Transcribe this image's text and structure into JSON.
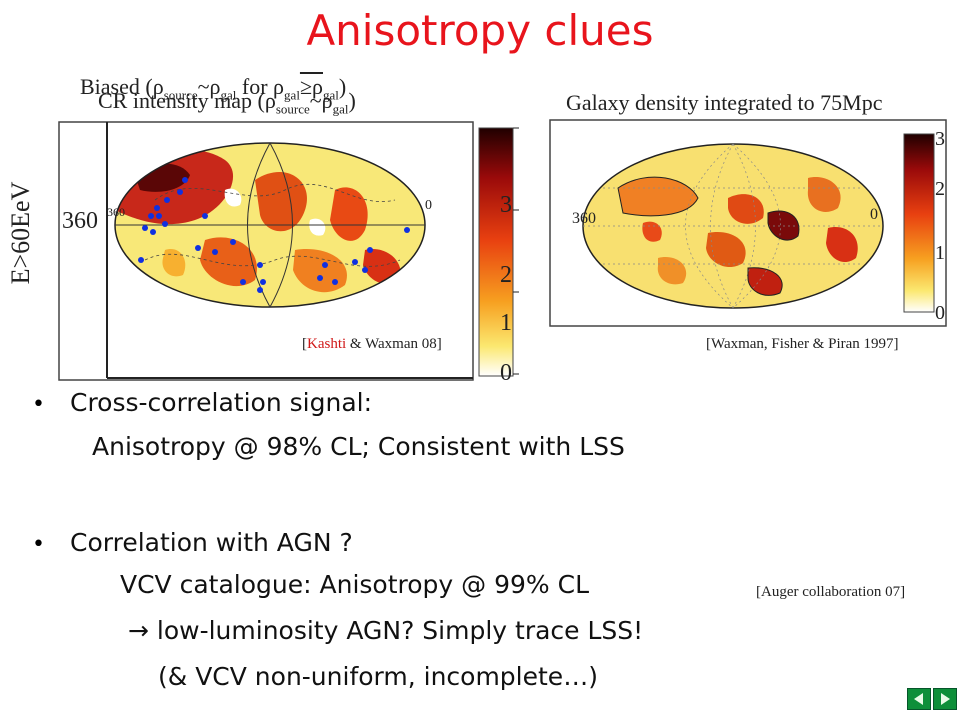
{
  "slide": {
    "title": "Anisotropy clues"
  },
  "left_map": {
    "overlay_label_biased": "Biased (",
    "overlay_rho1": "ρ",
    "overlay_sub1": "source",
    "overlay_tilde": "~ρ",
    "overlay_sub2": "gal",
    "overlay_for": " for ρ",
    "overlay_sub3": "gal",
    "overlay_ge": "≥ρ",
    "overlay_sub4": "gal",
    "overlay_close": ")",
    "label_cr": "CR intensity map (ρ",
    "label_cr_sub1": "source",
    "label_cr_tilde": "~ρ",
    "label_cr_sub2": "gal",
    "label_cr_close": ")",
    "energy_label": "E>60EeV",
    "axis_360": "360",
    "axis_360_small": "360",
    "axis_0": "0",
    "colorbar_ticks": [
      "3",
      "2",
      "1",
      "0"
    ],
    "citation_open": "[",
    "citation_author": "Kashti",
    "citation_rest": " & Waxman 08]"
  },
  "right_map": {
    "label": "Galaxy density integrated to 75Mpc",
    "axis_360": "360",
    "axis_0": "0",
    "colorbar_ticks": [
      "3",
      "2",
      "1",
      "0"
    ],
    "citation": "[Waxman, Fisher & Piran 1997]"
  },
  "bullets": {
    "b1": "Cross-correlation signal:",
    "b1_sub": "Anisotropy @ 98% CL; Consistent with LSS",
    "b2": "Correlation with AGN ?",
    "b2_sub1": "VCV catalogue: Anisotropy @ 99% CL",
    "b2_sub2": " low-luminosity AGN?   Simply trace LSS!",
    "b2_sub3": "(& VCV non-uniform, incomplete…)",
    "auger_citation": "[Auger collaboration 07]"
  },
  "colors": {
    "title": "#e8141c",
    "nav_green": "#0e8f3a"
  }
}
